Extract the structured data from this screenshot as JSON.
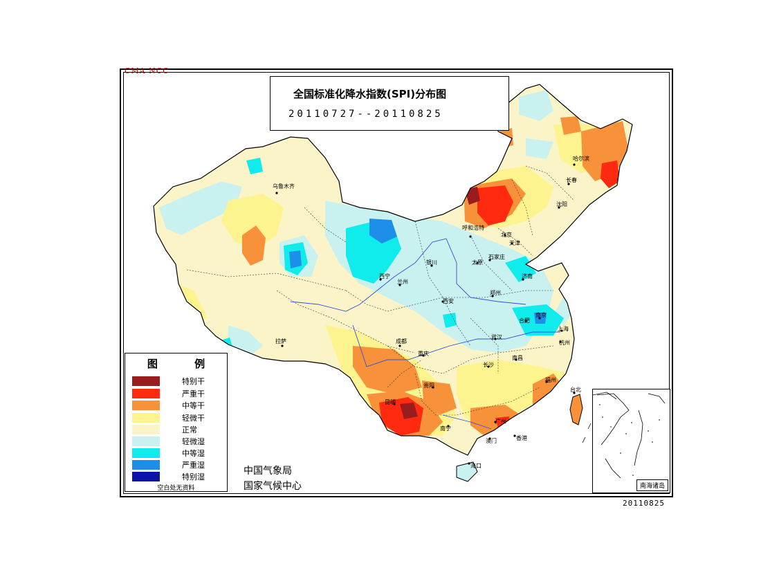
{
  "header": {
    "watermark": "CMA NCC",
    "title": "全国标准化降水指数(SPI)分布图",
    "date_range": "20110727--20110825"
  },
  "legend": {
    "title": "图 例",
    "items": [
      {
        "label": "特别干",
        "color": "#9b1c1c"
      },
      {
        "label": "严重干",
        "color": "#ff2a10"
      },
      {
        "label": "中等干",
        "color": "#f7923a"
      },
      {
        "label": "轻微干",
        "color": "#fef48f"
      },
      {
        "label": "正常",
        "color": "#fbf4c8"
      },
      {
        "label": "轻微湿",
        "color": "#c9f1ef"
      },
      {
        "label": "中等湿",
        "color": "#10ecec"
      },
      {
        "label": "严重湿",
        "color": "#1e8fe8"
      },
      {
        "label": "特别湿",
        "color": "#0a12a8"
      }
    ],
    "note": "空白处无资料"
  },
  "agency": {
    "line1": "中国气象局",
    "line2": "国家气候中心"
  },
  "inset": {
    "label": "南海诸岛"
  },
  "footer": {
    "date": "20110825"
  },
  "cities": [
    {
      "name": "乌鲁木齐"
    },
    {
      "name": "哈尔滨"
    },
    {
      "name": "长春"
    },
    {
      "name": "沈阳"
    },
    {
      "name": "呼和浩特"
    },
    {
      "name": "北京"
    },
    {
      "name": "天津"
    },
    {
      "name": "石家庄"
    },
    {
      "name": "太原"
    },
    {
      "name": "银川"
    },
    {
      "name": "西宁"
    },
    {
      "name": "兰州"
    },
    {
      "name": "济南"
    },
    {
      "name": "西安"
    },
    {
      "name": "郑州"
    },
    {
      "name": "合肥"
    },
    {
      "name": "南京"
    },
    {
      "name": "上海"
    },
    {
      "name": "拉萨"
    },
    {
      "name": "成都"
    },
    {
      "name": "武汉"
    },
    {
      "name": "杭州"
    },
    {
      "name": "重庆"
    },
    {
      "name": "长沙"
    },
    {
      "name": "南昌"
    },
    {
      "name": "福州"
    },
    {
      "name": "贵阳"
    },
    {
      "name": "台北"
    },
    {
      "name": "昆明"
    },
    {
      "name": "南宁"
    },
    {
      "name": "广州"
    },
    {
      "name": "澳门"
    },
    {
      "name": "香港"
    },
    {
      "name": "海口"
    }
  ]
}
